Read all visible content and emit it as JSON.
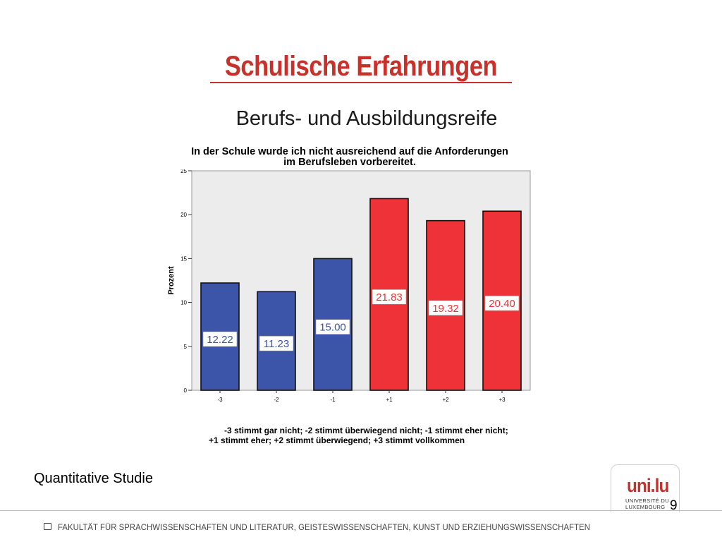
{
  "slide": {
    "title": "Schulische Erfahrungen",
    "subtitle": "Berufs- und Ausbildungsreife",
    "footer_left": "Quantitative Studie",
    "page_number": "9",
    "logo_mark": "uni.lu",
    "logo_sub_1": "UNIVERSITÉ DU",
    "logo_sub_2": "LUXEMBOURG",
    "footer_faculty": "FAKULTÄT FÜR SPRACHWISSENSCHAFTEN UND LITERATUR, GEISTESWISSENSCHAFTEN, KUNST UND ERZIEHUNGSWISSENSCHAFTEN"
  },
  "chart_data": {
    "type": "bar",
    "title_line1": "In der Schule wurde ich nicht ausreichend auf die Anforderungen",
    "title_line2": "im Berufsleben vorbereitet.",
    "ylabel": "Prozent",
    "xlabel": "",
    "ylim": [
      0,
      25
    ],
    "yticks": [
      "0",
      "5",
      "10",
      "15",
      "20",
      "25"
    ],
    "categories": [
      "-3",
      "-2",
      "-1",
      "+1",
      "+2",
      "+3"
    ],
    "values": [
      12.22,
      11.23,
      15.0,
      21.83,
      19.32,
      20.4
    ],
    "value_labels": [
      "12.22",
      "11.23",
      "15.00",
      "21.83",
      "19.32",
      "20.40"
    ],
    "bar_colors": [
      "#3d55a8",
      "#3d55a8",
      "#3d55a8",
      "#ee3237",
      "#ee3237",
      "#ee3237"
    ],
    "plot_background": "#ececec",
    "grid": false,
    "legend_line1": "-3 stimmt gar nicht; -2 stimmt überwiegend nicht; -1 stimmt eher nicht;",
    "legend_line2": "+1 stimmt eher; +2 stimmt überwiegend; +3 stimmt vollkommen"
  }
}
